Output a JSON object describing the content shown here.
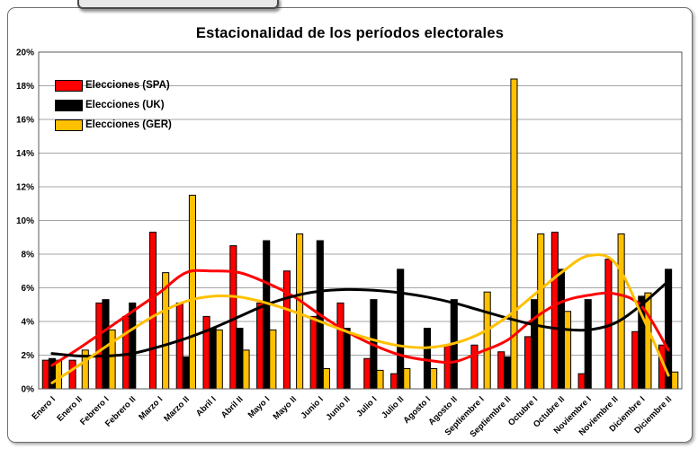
{
  "title": "Estacionalidad de los períodos electorales",
  "legend": [
    {
      "label": "Elecciones (SPA)",
      "color": "#FF0000"
    },
    {
      "label": "Elecciones (UK)",
      "color": "#000000"
    },
    {
      "label": "Elecciones (GER)",
      "color": "#FFC000"
    }
  ],
  "chart_data": {
    "type": "bar",
    "title": "Estacionalidad de los períodos electorales",
    "categories": [
      "Enero I",
      "Enero II",
      "Febrero I",
      "Febrero II",
      "Marzo I",
      "Marzo II",
      "Abril I",
      "Abril II",
      "Mayo I",
      "Mayo II",
      "Junio I",
      "Junio II",
      "Julio I",
      "Julio II",
      "Agosto I",
      "Agosto II",
      "Septiembre I",
      "Septiembre II",
      "Octubre I",
      "Octubre II",
      "Noviembre I",
      "Noviembre II",
      "Diciembre I",
      "Diciembre II"
    ],
    "series": [
      {
        "name": "Elecciones (SPA)",
        "color": "#FF0000",
        "values": [
          1.7,
          1.7,
          5.1,
          4.3,
          9.3,
          5.1,
          4.3,
          8.5,
          5.1,
          7.0,
          4.3,
          5.1,
          1.8,
          0.9,
          0,
          2.6,
          2.6,
          2.2,
          3.1,
          9.3,
          0.9,
          7.7,
          3.4,
          2.6
        ]
      },
      {
        "name": "Elecciones (UK)",
        "color": "#000000",
        "values": [
          1.8,
          0,
          5.3,
          5.1,
          0,
          1.9,
          3.6,
          3.6,
          8.8,
          0,
          8.8,
          3.6,
          5.3,
          7.1,
          3.6,
          5.3,
          0,
          1.9,
          5.3,
          7.1,
          5.3,
          0,
          5.5,
          7.1
        ]
      },
      {
        "name": "Elecciones (GER)",
        "color": "#FFC000",
        "values": [
          1.7,
          2.3,
          3.5,
          0,
          6.9,
          11.5,
          3.5,
          2.3,
          3.5,
          9.2,
          1.2,
          0,
          1.1,
          1.2,
          1.2,
          0,
          5.75,
          18.4,
          9.2,
          4.6,
          0,
          9.2,
          5.7,
          1.0
        ]
      }
    ],
    "trendlines": [
      {
        "name": "Elecciones (SPA)",
        "color": "#FF0000",
        "values": [
          1.4,
          2.4,
          3.5,
          4.6,
          5.7,
          6.9,
          7.0,
          6.9,
          6.3,
          5.5,
          4.4,
          3.4,
          2.6,
          2.0,
          1.7,
          1.6,
          2.2,
          2.9,
          4.2,
          5.15,
          5.55,
          5.65,
          4.9,
          2.3
        ]
      },
      {
        "name": "Elecciones (UK)",
        "color": "#000000",
        "values": [
          2.1,
          1.95,
          1.95,
          2.1,
          2.5,
          3.0,
          3.6,
          4.3,
          5.0,
          5.5,
          5.8,
          5.9,
          5.85,
          5.7,
          5.45,
          5.1,
          4.65,
          4.2,
          3.8,
          3.55,
          3.5,
          3.9,
          5.0,
          6.4
        ]
      },
      {
        "name": "Elecciones (GER)",
        "color": "#FFC000",
        "values": [
          0.35,
          1.4,
          2.5,
          3.55,
          4.5,
          5.2,
          5.5,
          5.45,
          5.1,
          4.6,
          4.0,
          3.4,
          2.9,
          2.55,
          2.45,
          2.7,
          3.3,
          4.3,
          5.6,
          6.9,
          7.9,
          7.5,
          4.4,
          0.8
        ]
      }
    ],
    "y_axis": {
      "min": 0,
      "max": 20,
      "step": 2,
      "format": "percent",
      "tick_labels": [
        "0%",
        "2%",
        "4%",
        "6%",
        "8%",
        "10%",
        "12%",
        "14%",
        "16%",
        "18%",
        "20%"
      ]
    },
    "x_axis": {
      "label_rotation": -45
    },
    "grid": true,
    "legend_position": "top-left-inside"
  }
}
